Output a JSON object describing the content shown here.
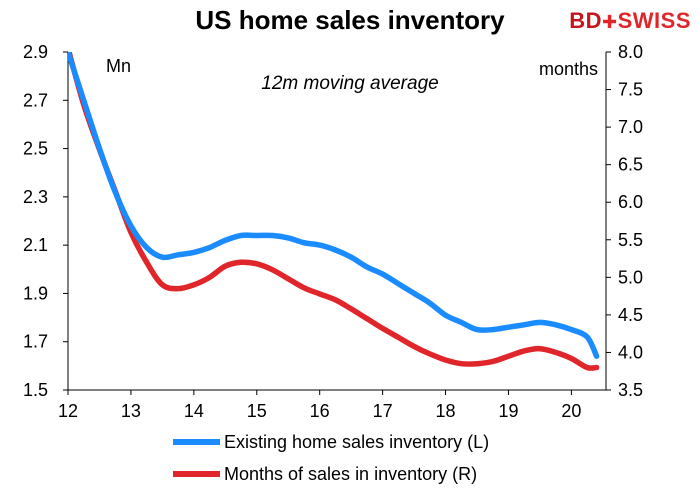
{
  "header": {
    "title": "US home sales inventory",
    "subtitle": "12m moving average",
    "logo_text_a": "BD",
    "logo_text_b": "SWISS"
  },
  "chart_data": {
    "type": "line",
    "title": "US home sales inventory",
    "subtitle": "12m moving average",
    "left_axis_label": "Mn",
    "right_axis_label": "months",
    "x_ticks": [
      "12",
      "13",
      "14",
      "15",
      "16",
      "17",
      "18",
      "19",
      "20"
    ],
    "x_range": [
      12,
      20.55
    ],
    "y_left_range": [
      1.5,
      2.9
    ],
    "y_left_ticks": [
      "1.5",
      "1.7",
      "1.9",
      "2.1",
      "2.3",
      "2.5",
      "2.7",
      "2.9"
    ],
    "y_right_range": [
      3.5,
      8.0
    ],
    "y_right_ticks": [
      "3.5",
      "4.0",
      "4.5",
      "5.0",
      "5.5",
      "6.0",
      "6.5",
      "7.0",
      "7.5",
      "8.0"
    ],
    "colors": {
      "existing": "#1a8cff",
      "months": "#e0262a"
    },
    "series": [
      {
        "name": "Existing home sales inventory (L)",
        "axis": "left",
        "x": [
          12.0,
          12.25,
          12.5,
          12.75,
          13.0,
          13.25,
          13.5,
          13.75,
          14.0,
          14.25,
          14.5,
          14.75,
          15.0,
          15.25,
          15.5,
          15.75,
          16.0,
          16.25,
          16.5,
          16.75,
          17.0,
          17.25,
          17.5,
          17.75,
          18.0,
          18.25,
          18.5,
          18.75,
          19.0,
          19.25,
          19.5,
          19.75,
          20.0,
          20.25,
          20.4
        ],
        "y": [
          2.9,
          2.7,
          2.5,
          2.32,
          2.18,
          2.09,
          2.05,
          2.06,
          2.07,
          2.09,
          2.12,
          2.14,
          2.14,
          2.14,
          2.13,
          2.11,
          2.1,
          2.08,
          2.05,
          2.01,
          1.98,
          1.94,
          1.9,
          1.86,
          1.81,
          1.78,
          1.75,
          1.75,
          1.76,
          1.77,
          1.78,
          1.77,
          1.75,
          1.72,
          1.64
        ]
      },
      {
        "name": "Months of sales in inventory (R)",
        "axis": "right",
        "x": [
          12.0,
          12.25,
          12.5,
          12.75,
          13.0,
          13.25,
          13.5,
          13.75,
          14.0,
          14.25,
          14.5,
          14.75,
          15.0,
          15.25,
          15.5,
          15.75,
          16.0,
          16.25,
          16.5,
          16.75,
          17.0,
          17.25,
          17.5,
          17.75,
          18.0,
          18.25,
          18.5,
          18.75,
          19.0,
          19.25,
          19.5,
          19.75,
          20.0,
          20.25,
          20.4
        ],
        "y": [
          8.05,
          7.3,
          6.7,
          6.15,
          5.6,
          5.2,
          4.9,
          4.85,
          4.9,
          5.0,
          5.15,
          5.2,
          5.18,
          5.1,
          4.98,
          4.86,
          4.78,
          4.7,
          4.58,
          4.45,
          4.32,
          4.2,
          4.08,
          3.98,
          3.9,
          3.85,
          3.85,
          3.88,
          3.95,
          4.02,
          4.05,
          4.0,
          3.92,
          3.8,
          3.8
        ]
      }
    ],
    "legend_position": "bottom",
    "grid": false
  }
}
